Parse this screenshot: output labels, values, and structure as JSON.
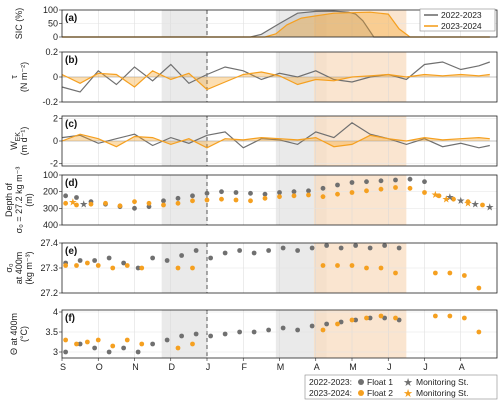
{
  "chart_data": {
    "type": "line",
    "colors": {
      "year1": "#707070",
      "year2": "#f5a020",
      "shade_gray": "#e6e6e6",
      "shade_orange": "#f8dcc0"
    },
    "months": [
      "S",
      "O",
      "N",
      "D",
      "J",
      "F",
      "M",
      "A",
      "M",
      "J",
      "J",
      "A"
    ],
    "month_axis": "months from September; 0 = 1 September, 1 month per unit",
    "vertical_dashed_line_at": 4.0,
    "shaded_periods": [
      {
        "color": "gray",
        "start": 2.75,
        "end": 4.0
      },
      {
        "color": "gray",
        "start": 5.9,
        "end": 7.3
      },
      {
        "color": "orange",
        "start": 6.95,
        "end": 9.5
      }
    ],
    "legend_top": {
      "items": [
        "2022-2023",
        "2023-2024"
      ],
      "placement": "top-right"
    },
    "panels": [
      {
        "id": "a",
        "label": "(a)",
        "ylabel": [
          "SIC (%)"
        ],
        "yticks": [
          "100",
          "50",
          "0"
        ],
        "ylim": [
          0,
          100
        ],
        "series": [
          {
            "name": "2022-2023",
            "x": [
              0,
              5.2,
              5.5,
              6,
              6.5,
              7,
              7.5,
              7.9,
              8.1,
              8.3,
              8.6,
              11.8
            ],
            "values": [
              0,
              0,
              10,
              50,
              88,
              95,
              96,
              92,
              85,
              60,
              0,
              0
            ]
          },
          {
            "name": "2023-2024",
            "x": [
              0,
              5.6,
              5.9,
              6.2,
              6.6,
              7,
              7.5,
              8,
              8.5,
              9,
              9.3,
              9.6,
              11.8
            ],
            "values": [
              0,
              0,
              12,
              45,
              70,
              78,
              88,
              90,
              92,
              85,
              30,
              0,
              0
            ]
          }
        ]
      },
      {
        "id": "b",
        "label": "(b)",
        "ylabel": [
          "τ",
          "(N m⁻²)"
        ],
        "yticks": [
          "0.2",
          "0",
          "-0.2"
        ],
        "ylim": [
          -0.2,
          0.2
        ],
        "series": [
          {
            "name": "2022-2023",
            "x": [
              0,
              0.5,
              1,
              1.5,
              2,
              2.5,
              3,
              3.5,
              4,
              4.5,
              5,
              5.5,
              6,
              6.5,
              7,
              7.5,
              8,
              8.5,
              9,
              9.5,
              10,
              10.5,
              11,
              11.5,
              11.8
            ],
            "values": [
              -0.08,
              -0.12,
              0.05,
              -0.06,
              0.08,
              -0.03,
              0.1,
              -0.05,
              0.02,
              0.08,
              0.05,
              -0.02,
              0.03,
              0,
              0.05,
              -0.02,
              -0.04,
              0,
              0.02,
              -0.02,
              0.1,
              0.12,
              0.06,
              0.09,
              0.12
            ]
          },
          {
            "name": "2023-2024",
            "x": [
              0,
              0.5,
              1,
              1.5,
              2,
              2.5,
              3,
              3.5,
              4,
              4.5,
              5,
              5.5,
              6,
              6.5,
              7,
              7.5,
              8,
              8.5,
              9,
              9.5,
              10,
              10.5,
              11,
              11.5,
              11.8
            ],
            "values": [
              0.02,
              -0.05,
              0.03,
              0.02,
              -0.08,
              0.05,
              -0.02,
              0.03,
              -0.1,
              -0.04,
              0.02,
              0.04,
              0.01,
              -0.06,
              -0.02,
              -0.03,
              0,
              0.01,
              0.02,
              0,
              0.02,
              0.01,
              0.02,
              0.01,
              0.02
            ]
          }
        ]
      },
      {
        "id": "c",
        "label": "(c)",
        "ylabel": [
          "W",
          "(m d⁻¹)"
        ],
        "ylabel_sub": "EK",
        "yticks": [
          "2",
          "0",
          "-2"
        ],
        "ylim": [
          -2.2,
          2.2
        ],
        "series": [
          {
            "name": "2022-2023",
            "x": [
              0,
              0.5,
              1,
              1.5,
              2,
              2.5,
              3,
              3.5,
              4,
              4.5,
              5,
              5.5,
              6,
              6.5,
              7,
              7.5,
              8,
              8.5,
              9,
              9.5,
              10,
              10.5,
              11,
              11.5,
              11.8
            ],
            "values": [
              0.3,
              0.5,
              -0.2,
              0.2,
              0.6,
              -0.4,
              0.3,
              -0.2,
              0.5,
              0.8,
              -0.6,
              0.2,
              0.1,
              -0.3,
              0.8,
              0.3,
              1.6,
              0.6,
              0.2,
              -0.3,
              0.2,
              -0.5,
              -0.2,
              -0.6,
              -0.4
            ]
          },
          {
            "name": "2023-2024",
            "x": [
              0,
              0.5,
              1,
              1.5,
              2,
              2.5,
              3,
              3.5,
              4,
              4.5,
              5,
              5.5,
              6,
              6.5,
              7,
              7.5,
              8,
              8.5,
              9,
              9.5,
              10,
              10.5,
              11,
              11.5,
              11.8
            ],
            "values": [
              0,
              0.6,
              0.2,
              -0.5,
              0.4,
              0.3,
              -0.3,
              0.2,
              -0.6,
              0.2,
              0.1,
              0.3,
              0.2,
              0.1,
              0.3,
              -0.5,
              -0.3,
              0.5,
              0.2,
              0,
              0.3,
              0.1,
              0.2,
              0.3,
              0.2
            ]
          }
        ]
      },
      {
        "id": "d",
        "label": "(d)",
        "ylabel": [
          "Depth of",
          "σ₀ = 27.2 kg m⁻³",
          "(m)"
        ],
        "yticks": [
          "100",
          "200",
          "300",
          "400"
        ],
        "ylim": [
          400,
          100
        ],
        "reversed": true,
        "float1": {
          "x": [
            0.1,
            0.4,
            0.8,
            1.2,
            1.6,
            2,
            2.4,
            2.8,
            3.2,
            3.6,
            4.0,
            4.4,
            4.8,
            5.2,
            5.6,
            6.0,
            6.4,
            6.8,
            7.2,
            7.6,
            8.0,
            8.4,
            8.8,
            9.2,
            9.6,
            10.0
          ],
          "values": [
            225,
            235,
            260,
            275,
            290,
            300,
            290,
            255,
            240,
            225,
            210,
            200,
            205,
            210,
            215,
            205,
            200,
            195,
            180,
            160,
            145,
            140,
            135,
            130,
            125,
            140
          ]
        },
        "float2": {
          "x": [
            0.1,
            0.4,
            0.8,
            1.2,
            1.6,
            2,
            2.4,
            2.8,
            3.2,
            3.6,
            4.0,
            4.4,
            4.8,
            5.2,
            5.6,
            6.0,
            6.4,
            6.8,
            7.2,
            7.6,
            8.0,
            8.4,
            8.8,
            9.2,
            9.6,
            10.0,
            10.4,
            10.8,
            11.2,
            11.6
          ],
          "values": [
            270,
            280,
            275,
            270,
            285,
            260,
            270,
            280,
            270,
            255,
            250,
            245,
            250,
            255,
            240,
            230,
            225,
            220,
            230,
            215,
            205,
            195,
            185,
            175,
            180,
            205,
            225,
            245,
            260,
            280
          ]
        },
        "stations1": {
          "x": [
            0.6,
            10.7,
            11.0,
            11.4,
            11.8
          ],
          "values": [
            270,
            230,
            250,
            270,
            290
          ]
        },
        "stations2": {
          "x": [
            0.3,
            10.3,
            10.6,
            11.2
          ],
          "values": [
            260,
            215,
            240,
            265
          ]
        }
      },
      {
        "id": "e",
        "label": "(e)",
        "ylabel": [
          "σ₀",
          "at 400m",
          "(kg m⁻³)"
        ],
        "yticks": [
          "27.4",
          "27.3",
          "27.2"
        ],
        "ylim": [
          27.2,
          27.4
        ],
        "float1": {
          "x": [
            0.1,
            0.5,
            0.9,
            1.3,
            1.7,
            2.1,
            2.5,
            2.9,
            3.3,
            3.7,
            4.1,
            4.5,
            4.9,
            5.3,
            5.7,
            6.1,
            6.5,
            6.9,
            7.3,
            7.7,
            8.1,
            8.5,
            8.9,
            9.3
          ],
          "values": [
            27.32,
            27.33,
            27.33,
            27.34,
            27.32,
            27.3,
            27.34,
            27.33,
            27.35,
            27.37,
            27.34,
            27.36,
            27.37,
            27.36,
            27.37,
            27.38,
            27.37,
            27.38,
            27.39,
            27.38,
            27.39,
            27.38,
            27.39,
            27.38
          ]
        },
        "float2": {
          "x": [
            0.1,
            0.4,
            0.7,
            1.0,
            1.4,
            1.8,
            2.2,
            3.2,
            3.6,
            7.2,
            7.6,
            8.0,
            8.4,
            8.8,
            9.2,
            10.3,
            10.7,
            11.1,
            11.5
          ],
          "values": [
            27.31,
            27.31,
            27.32,
            27.31,
            27.3,
            27.31,
            27.3,
            27.3,
            27.3,
            27.31,
            27.31,
            27.31,
            27.3,
            27.3,
            27.28,
            27.28,
            27.28,
            27.27,
            27.22
          ]
        }
      },
      {
        "id": "f",
        "label": "(f)",
        "ylabel": [
          "Θ at 400m",
          "(°C)"
        ],
        "yticks": [
          "4",
          "3.5",
          "3"
        ],
        "ylim": [
          2.85,
          4.05
        ],
        "float1": {
          "x": [
            0.1,
            0.5,
            0.9,
            1.3,
            1.7,
            2.1,
            2.5,
            2.9,
            3.3,
            3.7,
            4.1,
            4.5,
            4.9,
            5.3,
            5.7,
            6.1,
            6.5,
            6.9,
            7.3,
            7.7,
            8.1,
            8.5,
            8.9,
            9.3
          ],
          "values": [
            3.0,
            3.2,
            3.1,
            3.0,
            3.1,
            3.0,
            3.2,
            3.3,
            3.4,
            3.45,
            3.4,
            3.45,
            3.5,
            3.5,
            3.55,
            3.6,
            3.55,
            3.65,
            3.7,
            3.75,
            3.8,
            3.85,
            3.85,
            3.8
          ]
        },
        "float2": {
          "x": [
            0.1,
            0.4,
            0.7,
            1.0,
            1.4,
            1.8,
            2.2,
            3.2,
            3.6,
            7.2,
            7.6,
            8.0,
            8.4,
            8.8,
            9.2,
            10.3,
            10.7,
            11.1,
            11.5
          ],
          "values": [
            3.3,
            3.2,
            3.25,
            3.3,
            3.15,
            3.3,
            3.2,
            3.1,
            3.2,
            3.55,
            3.7,
            3.8,
            3.85,
            3.9,
            3.85,
            3.9,
            3.9,
            3.85,
            3.5
          ]
        }
      }
    ],
    "legend_bottom": {
      "rows": [
        {
          "label": "2022-2023:",
          "float": "Float 1",
          "station": "Monitoring St."
        },
        {
          "label": "2023-2024:",
          "float": "Float 2",
          "station": "Monitoring St."
        }
      ]
    }
  }
}
